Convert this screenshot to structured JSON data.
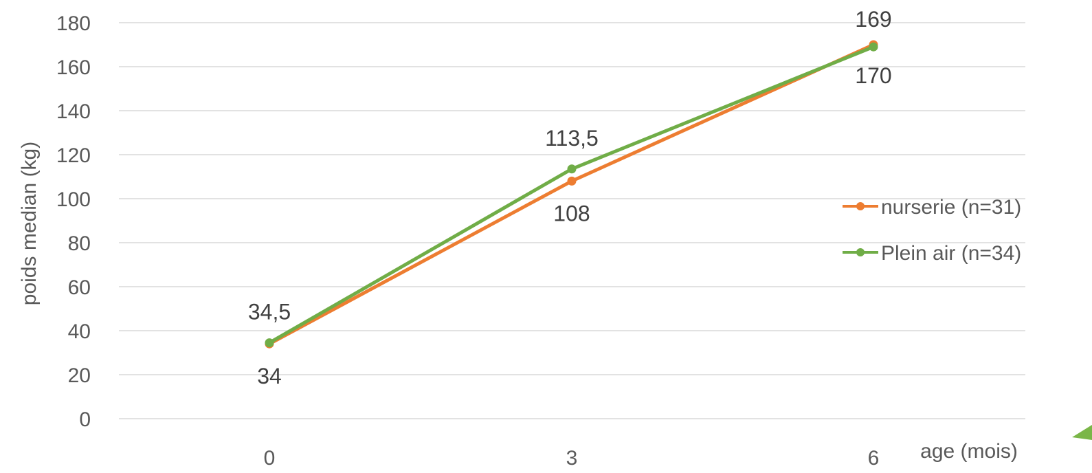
{
  "chart_data": {
    "type": "line",
    "title": "",
    "x": [
      0,
      3,
      6
    ],
    "xlabel": "age (mois)",
    "ylabel": "poids median (kg)",
    "ylim": [
      0,
      180
    ],
    "y_ticks": [
      0,
      20,
      40,
      60,
      80,
      100,
      120,
      140,
      160,
      180
    ],
    "x_tick_labels": [
      "0",
      "3",
      "6"
    ],
    "grid": true,
    "legend_position": "right",
    "series": [
      {
        "name": "nurserie (n=31)",
        "color": "#ED7D31",
        "values": [
          34,
          108,
          170
        ],
        "labels": [
          "34",
          "108",
          "170"
        ]
      },
      {
        "name": "Plein air (n=34)",
        "color": "#70AD47",
        "values": [
          34.5,
          113.5,
          169
        ],
        "labels": [
          "34,5",
          "113,5",
          "169"
        ]
      }
    ]
  }
}
